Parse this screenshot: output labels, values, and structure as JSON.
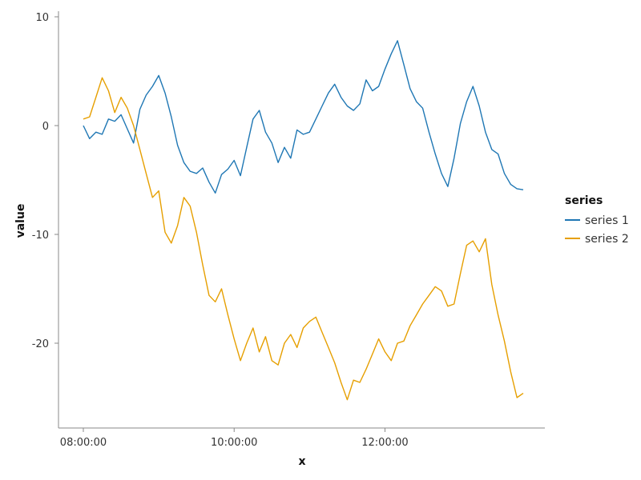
{
  "chart_data": {
    "type": "line",
    "xlabel": "x",
    "ylabel": "value",
    "x_type": "time",
    "x_start": "08:00:00",
    "x_end": "13:50:00",
    "x_ticks": [
      "08:00:00",
      "10:00:00",
      "12:00:00"
    ],
    "y_ticks": [
      10,
      0,
      -10,
      -20
    ],
    "ylim": [
      -28,
      10
    ],
    "grid": false,
    "legend": {
      "title": "series",
      "position": "right"
    },
    "series": [
      {
        "name": "series 1",
        "color": "#1f77b4",
        "points": [
          [
            "08:00:00",
            0.0
          ],
          [
            "08:05:00",
            -1.2
          ],
          [
            "08:10:00",
            -0.6
          ],
          [
            "08:15:00",
            -0.8
          ],
          [
            "08:20:00",
            0.6
          ],
          [
            "08:25:00",
            0.4
          ],
          [
            "08:30:00",
            1.0
          ],
          [
            "08:35:00",
            -0.3
          ],
          [
            "08:40:00",
            -1.6
          ],
          [
            "08:45:00",
            1.5
          ],
          [
            "08:50:00",
            2.8
          ],
          [
            "08:55:00",
            3.6
          ],
          [
            "09:00:00",
            4.6
          ],
          [
            "09:05:00",
            3.0
          ],
          [
            "09:10:00",
            0.8
          ],
          [
            "09:15:00",
            -1.8
          ],
          [
            "09:20:00",
            -3.4
          ],
          [
            "09:25:00",
            -4.2
          ],
          [
            "09:30:00",
            -4.4
          ],
          [
            "09:35:00",
            -3.9
          ],
          [
            "09:40:00",
            -5.2
          ],
          [
            "09:45:00",
            -6.2
          ],
          [
            "09:50:00",
            -4.5
          ],
          [
            "09:55:00",
            -4.0
          ],
          [
            "10:00:00",
            -3.2
          ],
          [
            "10:05:00",
            -4.6
          ],
          [
            "10:10:00",
            -2.0
          ],
          [
            "10:15:00",
            0.6
          ],
          [
            "10:20:00",
            1.4
          ],
          [
            "10:25:00",
            -0.6
          ],
          [
            "10:30:00",
            -1.6
          ],
          [
            "10:35:00",
            -3.4
          ],
          [
            "10:40:00",
            -2.0
          ],
          [
            "10:45:00",
            -3.0
          ],
          [
            "10:50:00",
            -0.4
          ],
          [
            "10:55:00",
            -0.8
          ],
          [
            "11:00:00",
            -0.6
          ],
          [
            "11:05:00",
            0.6
          ],
          [
            "11:10:00",
            1.8
          ],
          [
            "11:15:00",
            3.0
          ],
          [
            "11:20:00",
            3.8
          ],
          [
            "11:25:00",
            2.6
          ],
          [
            "11:30:00",
            1.8
          ],
          [
            "11:35:00",
            1.4
          ],
          [
            "11:40:00",
            2.0
          ],
          [
            "11:45:00",
            4.2
          ],
          [
            "11:50:00",
            3.2
          ],
          [
            "11:55:00",
            3.6
          ],
          [
            "12:00:00",
            5.2
          ],
          [
            "12:05:00",
            6.6
          ],
          [
            "12:10:00",
            7.8
          ],
          [
            "12:15:00",
            5.6
          ],
          [
            "12:20:00",
            3.4
          ],
          [
            "12:25:00",
            2.2
          ],
          [
            "12:30:00",
            1.6
          ],
          [
            "12:35:00",
            -0.6
          ],
          [
            "12:40:00",
            -2.6
          ],
          [
            "12:45:00",
            -4.4
          ],
          [
            "12:50:00",
            -5.6
          ],
          [
            "12:55:00",
            -3.0
          ],
          [
            "13:00:00",
            0.2
          ],
          [
            "13:05:00",
            2.2
          ],
          [
            "13:10:00",
            3.6
          ],
          [
            "13:15:00",
            1.8
          ],
          [
            "13:20:00",
            -0.6
          ],
          [
            "13:25:00",
            -2.2
          ],
          [
            "13:30:00",
            -2.6
          ],
          [
            "13:35:00",
            -4.4
          ],
          [
            "13:40:00",
            -5.4
          ],
          [
            "13:45:00",
            -5.8
          ],
          [
            "13:50:00",
            -5.9
          ]
        ]
      },
      {
        "name": "series 2",
        "color": "#e69f00",
        "points": [
          [
            "08:00:00",
            0.6
          ],
          [
            "08:05:00",
            0.8
          ],
          [
            "08:10:00",
            2.6
          ],
          [
            "08:15:00",
            4.4
          ],
          [
            "08:20:00",
            3.2
          ],
          [
            "08:25:00",
            1.2
          ],
          [
            "08:30:00",
            2.6
          ],
          [
            "08:35:00",
            1.6
          ],
          [
            "08:40:00",
            0.0
          ],
          [
            "08:45:00",
            -2.2
          ],
          [
            "08:50:00",
            -4.4
          ],
          [
            "08:55:00",
            -6.6
          ],
          [
            "09:00:00",
            -6.0
          ],
          [
            "09:05:00",
            -9.8
          ],
          [
            "09:10:00",
            -10.8
          ],
          [
            "09:15:00",
            -9.2
          ],
          [
            "09:20:00",
            -6.6
          ],
          [
            "09:25:00",
            -7.4
          ],
          [
            "09:30:00",
            -9.8
          ],
          [
            "09:35:00",
            -12.8
          ],
          [
            "09:40:00",
            -15.6
          ],
          [
            "09:45:00",
            -16.2
          ],
          [
            "09:50:00",
            -15.0
          ],
          [
            "09:55:00",
            -17.4
          ],
          [
            "10:00:00",
            -19.6
          ],
          [
            "10:05:00",
            -21.6
          ],
          [
            "10:10:00",
            -20.0
          ],
          [
            "10:15:00",
            -18.6
          ],
          [
            "10:20:00",
            -20.8
          ],
          [
            "10:25:00",
            -19.4
          ],
          [
            "10:30:00",
            -21.6
          ],
          [
            "10:35:00",
            -22.0
          ],
          [
            "10:40:00",
            -20.0
          ],
          [
            "10:45:00",
            -19.2
          ],
          [
            "10:50:00",
            -20.4
          ],
          [
            "10:55:00",
            -18.6
          ],
          [
            "11:00:00",
            -18.0
          ],
          [
            "11:05:00",
            -17.6
          ],
          [
            "11:10:00",
            -19.0
          ],
          [
            "11:15:00",
            -20.4
          ],
          [
            "11:20:00",
            -21.8
          ],
          [
            "11:25:00",
            -23.6
          ],
          [
            "11:30:00",
            -25.2
          ],
          [
            "11:35:00",
            -23.4
          ],
          [
            "11:40:00",
            -23.6
          ],
          [
            "11:45:00",
            -22.4
          ],
          [
            "11:50:00",
            -21.0
          ],
          [
            "11:55:00",
            -19.6
          ],
          [
            "12:00:00",
            -20.8
          ],
          [
            "12:05:00",
            -21.6
          ],
          [
            "12:10:00",
            -20.0
          ],
          [
            "12:15:00",
            -19.8
          ],
          [
            "12:20:00",
            -18.4
          ],
          [
            "12:25:00",
            -17.4
          ],
          [
            "12:30:00",
            -16.4
          ],
          [
            "12:35:00",
            -15.6
          ],
          [
            "12:40:00",
            -14.8
          ],
          [
            "12:45:00",
            -15.2
          ],
          [
            "12:50:00",
            -16.6
          ],
          [
            "12:55:00",
            -16.4
          ],
          [
            "13:00:00",
            -13.6
          ],
          [
            "13:05:00",
            -11.0
          ],
          [
            "13:10:00",
            -10.6
          ],
          [
            "13:15:00",
            -11.6
          ],
          [
            "13:20:00",
            -10.4
          ],
          [
            "13:25:00",
            -14.6
          ],
          [
            "13:30:00",
            -17.4
          ],
          [
            "13:35:00",
            -19.8
          ],
          [
            "13:40:00",
            -22.6
          ],
          [
            "13:45:00",
            -25.0
          ],
          [
            "13:50:00",
            -24.6
          ]
        ]
      }
    ]
  }
}
